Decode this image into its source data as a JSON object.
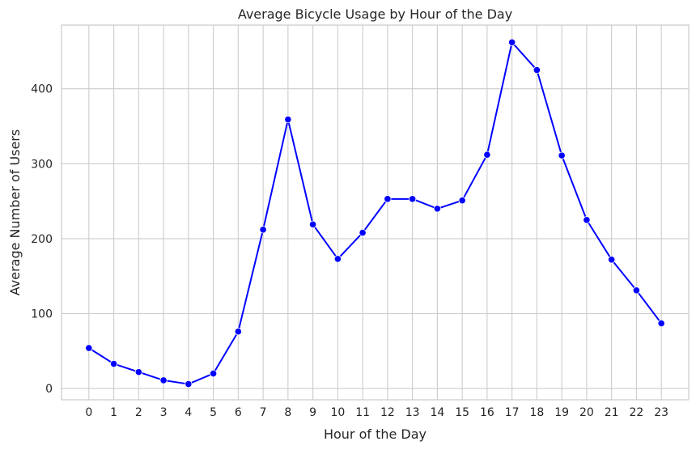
{
  "chart_data": {
    "type": "line",
    "title": "Average Bicycle Usage by Hour of the Day",
    "xlabel": "Hour of the Day",
    "ylabel": "Average Number of Users",
    "x": [
      0,
      1,
      2,
      3,
      4,
      5,
      6,
      7,
      8,
      9,
      10,
      11,
      12,
      13,
      14,
      15,
      16,
      17,
      18,
      19,
      20,
      21,
      22,
      23
    ],
    "x_tick_labels": [
      "0",
      "1",
      "2",
      "3",
      "4",
      "5",
      "6",
      "7",
      "8",
      "9",
      "10",
      "11",
      "12",
      "13",
      "14",
      "15",
      "16",
      "17",
      "18",
      "19",
      "20",
      "21",
      "22",
      "23"
    ],
    "series": [
      {
        "values": [
          54,
          33,
          22,
          11,
          6,
          20,
          76,
          212,
          359,
          219,
          173,
          208,
          253,
          253,
          240,
          251,
          312,
          462,
          425,
          311,
          225,
          172,
          131,
          87
        ],
        "color": "#0000ff",
        "marker": "circle"
      }
    ],
    "xlim": [
      -1.1,
      24.1
    ],
    "ylim": [
      -15,
      485
    ],
    "y_ticks": [
      0,
      100,
      200,
      300,
      400
    ],
    "y_tick_labels": [
      "0",
      "100",
      "200",
      "300",
      "400"
    ],
    "grid": true,
    "legend": "none"
  }
}
